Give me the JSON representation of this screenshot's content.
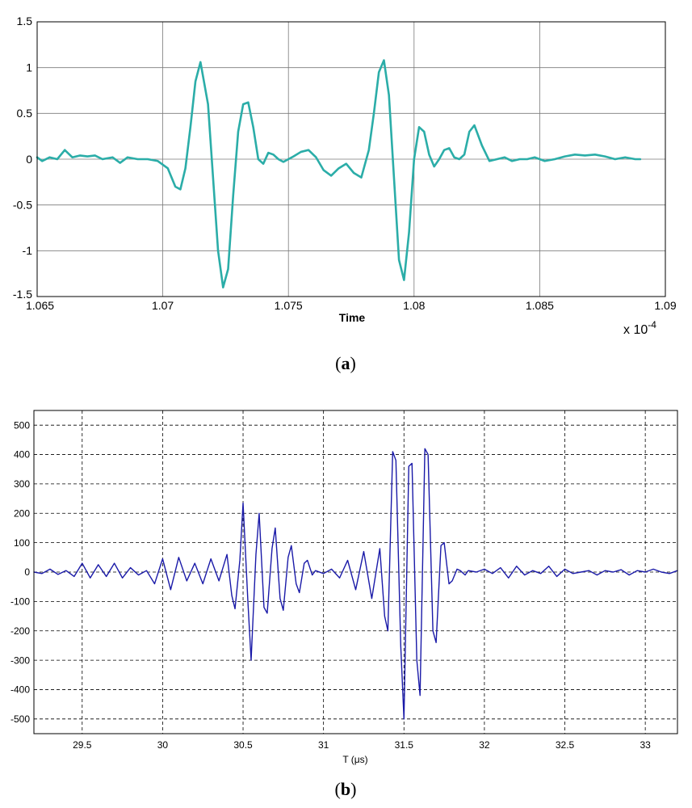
{
  "chart_data": [
    {
      "type": "line",
      "panel_label": "a",
      "xlabel": "Time",
      "exponent_label": "x 10",
      "exponent_power": "-4",
      "xlim": [
        1.065,
        1.09
      ],
      "ylim": [
        -1.5,
        1.5
      ],
      "xticks": [
        "1.065",
        "1.07",
        "1.075",
        "1.08",
        "1.085",
        "1.09"
      ],
      "xtick_values": [
        1.065,
        1.07,
        1.075,
        1.08,
        1.085,
        1.09
      ],
      "yticks": [
        "1.5",
        "1",
        "0.5",
        "0",
        "-0.5",
        "-1",
        "-1.5"
      ],
      "ytick_values": [
        1.5,
        1,
        0.5,
        0,
        -0.5,
        -1,
        -1.5
      ],
      "grid": "solid",
      "line_color": "#2bada8",
      "series": [
        {
          "x": [
            1.065,
            1.0652,
            1.0655,
            1.0658,
            1.0661,
            1.0664,
            1.0667,
            1.067,
            1.0673,
            1.0676,
            1.068,
            1.0683,
            1.0686,
            1.069,
            1.0694,
            1.0698,
            1.0702,
            1.0705,
            1.0707,
            1.0709,
            1.0711,
            1.0713,
            1.0715,
            1.0718,
            1.072,
            1.0722,
            1.0724,
            1.0726,
            1.0728,
            1.073,
            1.0732,
            1.0734,
            1.0736,
            1.0738,
            1.074,
            1.0742,
            1.0744,
            1.0746,
            1.0748,
            1.075,
            1.0752,
            1.0755,
            1.0758,
            1.0761,
            1.0764,
            1.0767,
            1.077,
            1.0773,
            1.0776,
            1.0779,
            1.0782,
            1.0784,
            1.0786,
            1.0788,
            1.079,
            1.0792,
            1.0794,
            1.0796,
            1.0798,
            1.08,
            1.0802,
            1.0804,
            1.0806,
            1.0808,
            1.081,
            1.0812,
            1.0814,
            1.0816,
            1.0818,
            1.082,
            1.0822,
            1.0824,
            1.0827,
            1.083,
            1.0833,
            1.0836,
            1.0839,
            1.0842,
            1.0845,
            1.0848,
            1.0852,
            1.0856,
            1.086,
            1.0864,
            1.0868,
            1.0872,
            1.0876,
            1.088,
            1.0884,
            1.0888,
            1.089
          ],
          "y": [
            0.02,
            -0.02,
            0.02,
            0.0,
            0.1,
            0.02,
            0.04,
            0.03,
            0.04,
            0.0,
            0.02,
            -0.04,
            0.02,
            0.0,
            0.0,
            -0.02,
            -0.1,
            -0.3,
            -0.33,
            -0.1,
            0.35,
            0.85,
            1.06,
            0.6,
            -0.2,
            -1.0,
            -1.4,
            -1.2,
            -0.4,
            0.3,
            0.6,
            0.62,
            0.35,
            0.0,
            -0.05,
            0.07,
            0.05,
            0.0,
            -0.03,
            0.0,
            0.03,
            0.08,
            0.1,
            0.02,
            -0.12,
            -0.18,
            -0.1,
            -0.05,
            -0.15,
            -0.2,
            0.1,
            0.5,
            0.95,
            1.08,
            0.7,
            -0.2,
            -1.1,
            -1.32,
            -0.8,
            0.0,
            0.35,
            0.3,
            0.05,
            -0.08,
            0.0,
            0.1,
            0.12,
            0.02,
            0.0,
            0.05,
            0.3,
            0.37,
            0.15,
            -0.02,
            0.0,
            0.02,
            -0.02,
            0.0,
            0.0,
            0.02,
            -0.02,
            0.0,
            0.03,
            0.05,
            0.04,
            0.05,
            0.03,
            0.0,
            0.02,
            0.0,
            0.0
          ]
        }
      ]
    },
    {
      "type": "line",
      "panel_label": "b",
      "xlabel": "T (μs)",
      "xlim": [
        29.2,
        33.2
      ],
      "ylim": [
        -550,
        550
      ],
      "xticks": [
        "29.5",
        "30",
        "30.5",
        "31",
        "31.5",
        "32",
        "32.5",
        "33"
      ],
      "xtick_values": [
        29.5,
        30,
        30.5,
        31,
        31.5,
        32,
        32.5,
        33
      ],
      "yticks": [
        "500",
        "400",
        "300",
        "200",
        "100",
        "0",
        "-100",
        "-200",
        "-300",
        "-400",
        "-500"
      ],
      "ytick_values": [
        500,
        400,
        300,
        200,
        100,
        0,
        -100,
        -200,
        -300,
        -400,
        -500
      ],
      "grid": "dashed",
      "line_color": "#1a1aa8",
      "series": [
        {
          "x": [
            29.2,
            29.25,
            29.3,
            29.35,
            29.4,
            29.45,
            29.5,
            29.55,
            29.6,
            29.65,
            29.7,
            29.75,
            29.8,
            29.85,
            29.9,
            29.95,
            30.0,
            30.05,
            30.1,
            30.15,
            30.2,
            30.25,
            30.3,
            30.35,
            30.4,
            30.43,
            30.45,
            30.48,
            30.5,
            30.53,
            30.55,
            30.58,
            30.6,
            30.63,
            30.65,
            30.68,
            30.7,
            30.73,
            30.75,
            30.78,
            30.8,
            30.83,
            30.85,
            30.88,
            30.9,
            30.93,
            30.95,
            31.0,
            31.05,
            31.1,
            31.15,
            31.2,
            31.25,
            31.3,
            31.35,
            31.38,
            31.4,
            31.43,
            31.45,
            31.48,
            31.5,
            31.53,
            31.55,
            31.58,
            31.6,
            31.63,
            31.65,
            31.68,
            31.7,
            31.73,
            31.75,
            31.78,
            31.8,
            31.83,
            31.85,
            31.88,
            31.9,
            31.95,
            32.0,
            32.05,
            32.1,
            32.15,
            32.2,
            32.25,
            32.3,
            32.35,
            32.4,
            32.45,
            32.5,
            32.55,
            32.6,
            32.65,
            32.7,
            32.75,
            32.8,
            32.85,
            32.9,
            32.95,
            33.0,
            33.05,
            33.1,
            33.15,
            33.2
          ],
          "y": [
            0,
            -5,
            10,
            -8,
            5,
            -15,
            30,
            -20,
            25,
            -15,
            30,
            -20,
            15,
            -10,
            5,
            -40,
            45,
            -60,
            50,
            -30,
            30,
            -40,
            45,
            -30,
            60,
            -80,
            -125,
            40,
            235,
            -100,
            -300,
            60,
            200,
            -120,
            -140,
            80,
            150,
            -90,
            -130,
            50,
            90,
            -40,
            -70,
            30,
            40,
            -10,
            5,
            -5,
            10,
            -20,
            40,
            -60,
            70,
            -90,
            80,
            -150,
            -200,
            410,
            380,
            -250,
            -500,
            360,
            370,
            -300,
            -420,
            420,
            400,
            -200,
            -240,
            90,
            100,
            -40,
            -30,
            10,
            5,
            -10,
            5,
            0,
            10,
            -5,
            15,
            -20,
            20,
            -10,
            5,
            -5,
            20,
            -15,
            10,
            -5,
            0,
            5,
            -10,
            5,
            0,
            8,
            -10,
            5,
            0,
            10,
            0,
            -5,
            5
          ]
        }
      ]
    }
  ]
}
